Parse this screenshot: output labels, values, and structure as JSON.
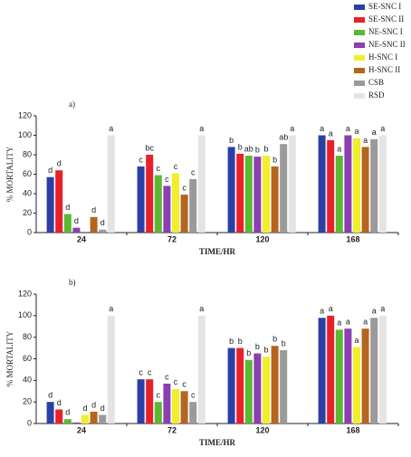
{
  "chart_data": [
    {
      "type": "bar",
      "label": "a)",
      "ylabel": "% MORTALITY",
      "xlabel": "TIME/HR",
      "categories": [
        "24",
        "72",
        "120",
        "168"
      ],
      "ylim": [
        0,
        120
      ],
      "yticks": [
        0,
        20,
        40,
        60,
        80,
        100,
        120
      ],
      "series": [
        {
          "name": "SE-SNC I",
          "color": "#2b3fa8",
          "values": [
            57,
            68,
            88,
            100
          ],
          "letters": [
            "d",
            "c",
            "b",
            "a"
          ]
        },
        {
          "name": "SE-SNC II",
          "color": "#e8202a",
          "values": [
            64,
            80,
            81,
            95
          ],
          "letters": [
            "d",
            "bc",
            "b",
            "a"
          ]
        },
        {
          "name": "NE-SNC I",
          "color": "#5bb833",
          "values": [
            19,
            59,
            79,
            79
          ],
          "letters": [
            "d",
            "c",
            "ab",
            "a"
          ]
        },
        {
          "name": "NE-SNC II",
          "color": "#8b3fb0",
          "values": [
            5,
            48,
            78,
            100
          ],
          "letters": [
            "d",
            "c",
            "b",
            "a"
          ]
        },
        {
          "name": "H-SNC I",
          "color": "#f2ee2a",
          "values": [
            0,
            61,
            79,
            97
          ],
          "letters": [
            null,
            "c",
            "b",
            "a"
          ]
        },
        {
          "name": "H-SNC II",
          "color": "#b5651d",
          "values": [
            16,
            39,
            68,
            88
          ],
          "letters": [
            "d",
            "c",
            "b",
            "a"
          ]
        },
        {
          "name": "CSB",
          "color": "#9a9a9a",
          "values": [
            3,
            55,
            91,
            96
          ],
          "letters": [
            "d",
            "c",
            "ab",
            "a"
          ]
        },
        {
          "name": "RSD",
          "color": "#e4e4e4",
          "values": [
            100,
            100,
            100,
            100
          ],
          "letters": [
            "a",
            "a",
            "a",
            "a"
          ]
        }
      ]
    },
    {
      "type": "bar",
      "label": "b)",
      "ylabel": "% MORTALITY",
      "xlabel": "TIME/HR",
      "categories": [
        "24",
        "72",
        "120",
        "168"
      ],
      "ylim": [
        0,
        120
      ],
      "yticks": [
        0,
        20,
        40,
        60,
        80,
        100,
        120
      ],
      "series": [
        {
          "color": "#2b3fa8",
          "values": [
            20,
            41,
            70,
            98
          ],
          "letters": [
            "d",
            "c",
            "b",
            "a"
          ]
        },
        {
          "color": "#e8202a",
          "values": [
            13,
            41,
            70,
            100
          ],
          "letters": [
            "d",
            "c",
            "b",
            "a"
          ]
        },
        {
          "color": "#5bb833",
          "values": [
            4,
            20,
            59,
            87
          ],
          "letters": [
            "d",
            "c",
            "b",
            "a"
          ]
        },
        {
          "color": "#8b3fb0",
          "values": [
            1,
            37,
            65,
            88
          ],
          "letters": [
            null,
            "c",
            "b",
            "a"
          ]
        },
        {
          "color": "#f2ee2a",
          "values": [
            8,
            32,
            62,
            71
          ],
          "letters": [
            "d",
            "c",
            "b",
            "a"
          ]
        },
        {
          "color": "#b5651d",
          "values": [
            11,
            30,
            72,
            88
          ],
          "letters": [
            "d",
            "c",
            "b",
            "a"
          ]
        },
        {
          "color": "#9a9a9a",
          "values": [
            8,
            20,
            68,
            98
          ],
          "letters": [
            "d",
            "c",
            "b",
            "a"
          ]
        },
        {
          "color": "#e4e4e4",
          "values": [
            100,
            100,
            null,
            100
          ],
          "letters": [
            "a",
            "a",
            null,
            "a"
          ]
        }
      ]
    }
  ]
}
